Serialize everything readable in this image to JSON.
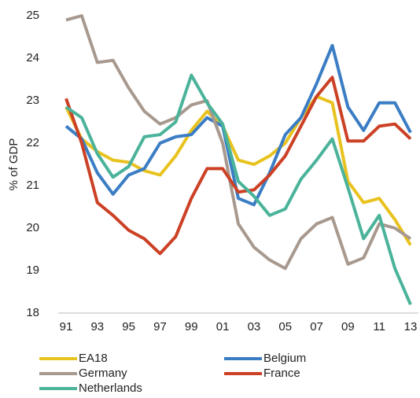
{
  "chart_data": {
    "type": "line",
    "ylabel": "% of GDP",
    "categories": [
      "91",
      null,
      "93",
      null,
      "95",
      null,
      "97",
      null,
      "99",
      null,
      "01",
      null,
      "03",
      null,
      "05",
      null,
      "07",
      null,
      "09",
      null,
      "11",
      null,
      "13"
    ],
    "ylim": [
      18,
      25
    ],
    "yticks": [
      18,
      19,
      20,
      21,
      22,
      23,
      24,
      25
    ],
    "series": [
      {
        "name": "EA18",
        "color": "#e8c21e",
        "values": [
          22.85,
          22.1,
          21.8,
          21.6,
          21.55,
          21.35,
          21.25,
          21.7,
          22.3,
          22.75,
          22.4,
          21.6,
          21.5,
          21.7,
          22.0,
          22.6,
          23.1,
          22.95,
          21.1,
          20.6,
          20.7,
          20.2,
          19.6
        ]
      },
      {
        "name": "Belgium",
        "color": "#3b7dc4",
        "values": [
          22.4,
          22.1,
          21.3,
          20.8,
          21.25,
          21.4,
          22.0,
          22.15,
          22.2,
          22.6,
          22.4,
          20.7,
          20.55,
          21.3,
          22.2,
          22.6,
          23.4,
          24.3,
          22.85,
          22.3,
          22.95,
          22.95,
          22.25
        ]
      },
      {
        "name": "Germany",
        "color": "#a8998f",
        "values": [
          24.9,
          25.0,
          23.9,
          23.95,
          23.3,
          22.75,
          22.45,
          22.6,
          22.9,
          23.0,
          22.0,
          20.1,
          19.55,
          19.25,
          19.05,
          19.75,
          20.1,
          20.25,
          19.15,
          19.3,
          20.1,
          20.0,
          19.75
        ]
      },
      {
        "name": "France",
        "color": "#cc4125",
        "values": [
          23.05,
          22.0,
          20.6,
          20.3,
          19.95,
          19.75,
          19.4,
          19.8,
          20.7,
          21.4,
          21.4,
          20.85,
          20.9,
          21.25,
          21.7,
          22.4,
          23.1,
          23.55,
          22.05,
          22.05,
          22.4,
          22.45,
          22.1
        ]
      },
      {
        "name": "Netherlands",
        "color": "#4ab39a",
        "values": [
          22.85,
          22.6,
          21.75,
          21.2,
          21.45,
          22.15,
          22.2,
          22.5,
          23.6,
          22.95,
          22.45,
          21.1,
          20.75,
          20.3,
          20.45,
          21.15,
          21.6,
          22.1,
          20.95,
          19.75,
          20.3,
          19.05,
          18.2
        ]
      }
    ]
  }
}
